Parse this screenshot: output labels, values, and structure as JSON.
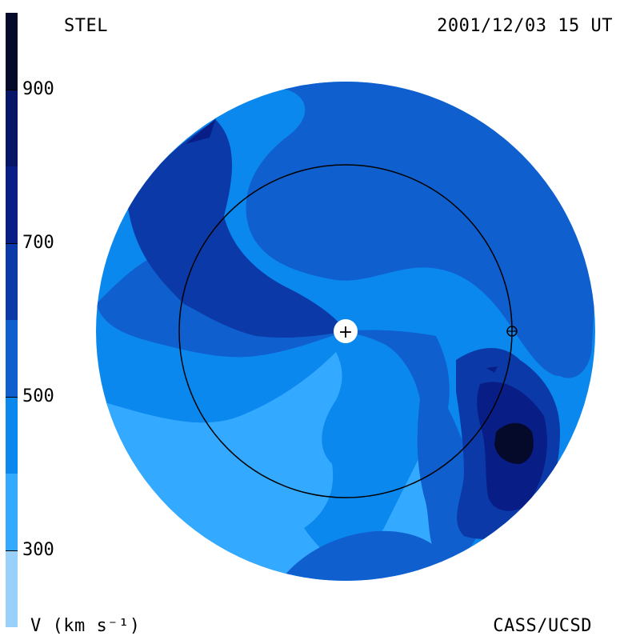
{
  "header": {
    "left_label": "STEL",
    "right_label": "2001/12/03 15 UT"
  },
  "footer": {
    "left_label": "V (km s⁻¹)",
    "right_label": "CASS/UCSD"
  },
  "chart_data": {
    "type": "heatmap",
    "title": "",
    "colorbar": {
      "label": "V (km s⁻¹)",
      "range": [
        200,
        1000
      ],
      "ticks": [
        {
          "value": 300,
          "label": "300"
        },
        {
          "value": 500,
          "label": "500"
        },
        {
          "value": 700,
          "label": "700"
        },
        {
          "value": 900,
          "label": "900"
        }
      ],
      "bands": [
        {
          "min": 200,
          "max": 300,
          "color": "#99d1fa"
        },
        {
          "min": 300,
          "max": 400,
          "color": "#33aaff"
        },
        {
          "min": 400,
          "max": 500,
          "color": "#0b88ee"
        },
        {
          "min": 500,
          "max": 600,
          "color": "#0f5fcf"
        },
        {
          "min": 600,
          "max": 700,
          "color": "#0b3aa8"
        },
        {
          "min": 700,
          "max": 800,
          "color": "#081e86"
        },
        {
          "min": 800,
          "max": 900,
          "color": "#061566"
        },
        {
          "min": 900,
          "max": 1000,
          "color": "#050a2a"
        }
      ]
    },
    "regions": [
      {
        "velocity_band": "300-400",
        "description": "south-west sector"
      },
      {
        "velocity_band": "400-500",
        "description": "background, northern and eastern sectors"
      },
      {
        "velocity_band": "500-600",
        "description": "spiral arms"
      },
      {
        "velocity_band": "600-700",
        "description": "inner spiral and eastern structure"
      },
      {
        "velocity_band": "800-900",
        "description": "eastern core"
      }
    ],
    "markers": {
      "sun": "+",
      "earth": "⊕",
      "earth_orbit_radius_au": 1.0
    }
  }
}
